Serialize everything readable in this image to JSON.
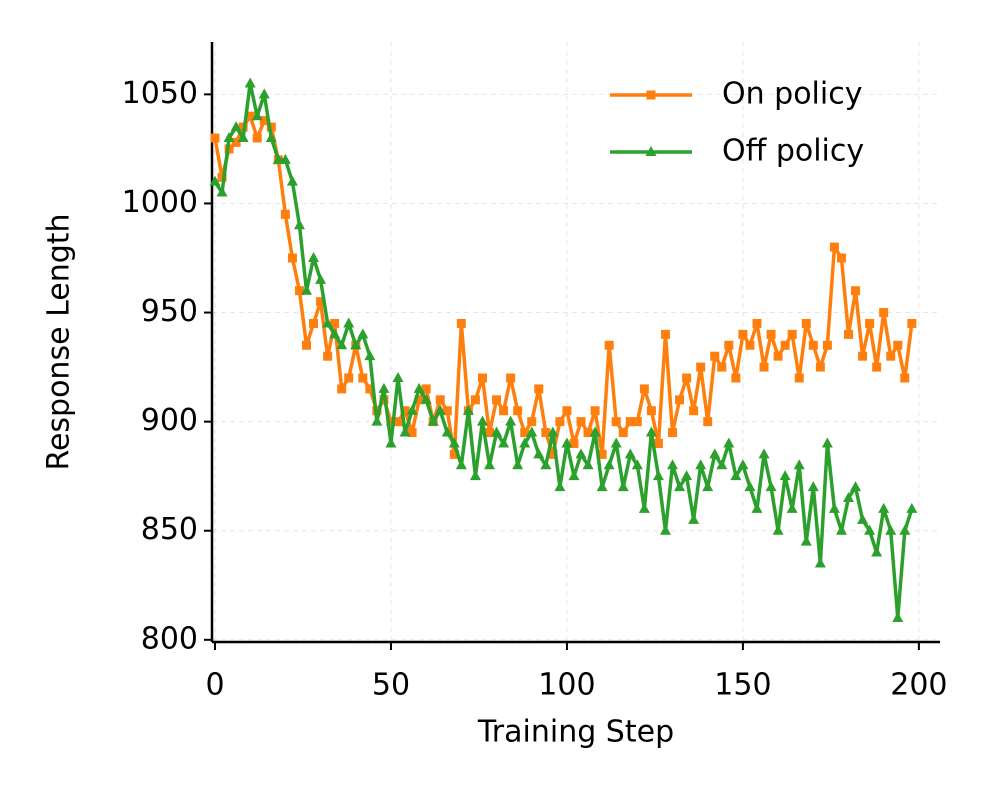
{
  "chart_data": {
    "type": "line",
    "xlabel": "Training Step",
    "ylabel": "Response Length",
    "x": [
      0,
      2,
      4,
      6,
      8,
      10,
      12,
      14,
      16,
      18,
      20,
      22,
      24,
      26,
      28,
      30,
      32,
      34,
      36,
      38,
      40,
      42,
      44,
      46,
      48,
      50,
      52,
      54,
      56,
      58,
      60,
      62,
      64,
      66,
      68,
      70,
      72,
      74,
      76,
      78,
      80,
      82,
      84,
      86,
      88,
      90,
      92,
      94,
      96,
      98,
      100,
      102,
      104,
      106,
      108,
      110,
      112,
      114,
      116,
      118,
      120,
      122,
      124,
      126,
      128,
      130,
      132,
      134,
      136,
      138,
      140,
      142,
      144,
      146,
      148,
      150,
      152,
      154,
      156,
      158,
      160,
      162,
      164,
      166,
      168,
      170,
      172,
      174,
      176,
      178,
      180,
      182,
      184,
      186,
      188,
      190,
      192,
      194,
      196,
      198
    ],
    "series": [
      {
        "name": "On policy",
        "color": "#ff7f0e",
        "marker": "square",
        "values": [
          1030,
          1012,
          1025,
          1028,
          1035,
          1040,
          1030,
          1038,
          1035,
          1020,
          995,
          975,
          960,
          935,
          945,
          955,
          930,
          945,
          915,
          920,
          935,
          920,
          915,
          905,
          910,
          900,
          900,
          905,
          895,
          910,
          915,
          900,
          910,
          905,
          885,
          945,
          905,
          910,
          920,
          895,
          910,
          905,
          920,
          905,
          895,
          900,
          915,
          895,
          885,
          900,
          905,
          890,
          900,
          895,
          905,
          885,
          935,
          900,
          895,
          900,
          900,
          915,
          905,
          890,
          940,
          895,
          910,
          920,
          905,
          925,
          900,
          930,
          925,
          935,
          920,
          940,
          935,
          945,
          925,
          940,
          930,
          935,
          940,
          920,
          945,
          935,
          925,
          935,
          980,
          975,
          940,
          960,
          930,
          945,
          925,
          950,
          930,
          935,
          920,
          945
        ]
      },
      {
        "name": "Off policy",
        "color": "#2ca02c",
        "marker": "triangle",
        "values": [
          1010,
          1005,
          1030,
          1035,
          1030,
          1055,
          1040,
          1050,
          1030,
          1020,
          1020,
          1010,
          990,
          960,
          975,
          965,
          945,
          940,
          935,
          945,
          935,
          940,
          930,
          900,
          915,
          890,
          920,
          895,
          905,
          915,
          910,
          900,
          905,
          895,
          890,
          880,
          905,
          875,
          900,
          880,
          895,
          890,
          900,
          880,
          890,
          895,
          885,
          880,
          895,
          870,
          890,
          875,
          885,
          880,
          895,
          870,
          880,
          890,
          870,
          885,
          880,
          860,
          895,
          875,
          850,
          880,
          870,
          875,
          855,
          880,
          870,
          885,
          880,
          890,
          875,
          880,
          870,
          860,
          885,
          870,
          850,
          875,
          860,
          880,
          845,
          870,
          835,
          890,
          860,
          850,
          865,
          870,
          855,
          850,
          840,
          860,
          850,
          810,
          850,
          860
        ]
      }
    ],
    "xlim": [
      -0.85,
      206
    ],
    "ylim": [
      799,
      1074
    ],
    "xticks": [
      0,
      50,
      100,
      150,
      200
    ],
    "yticks": [
      800,
      850,
      900,
      950,
      1000,
      1050
    ],
    "grid": true,
    "legend": "upper right"
  }
}
